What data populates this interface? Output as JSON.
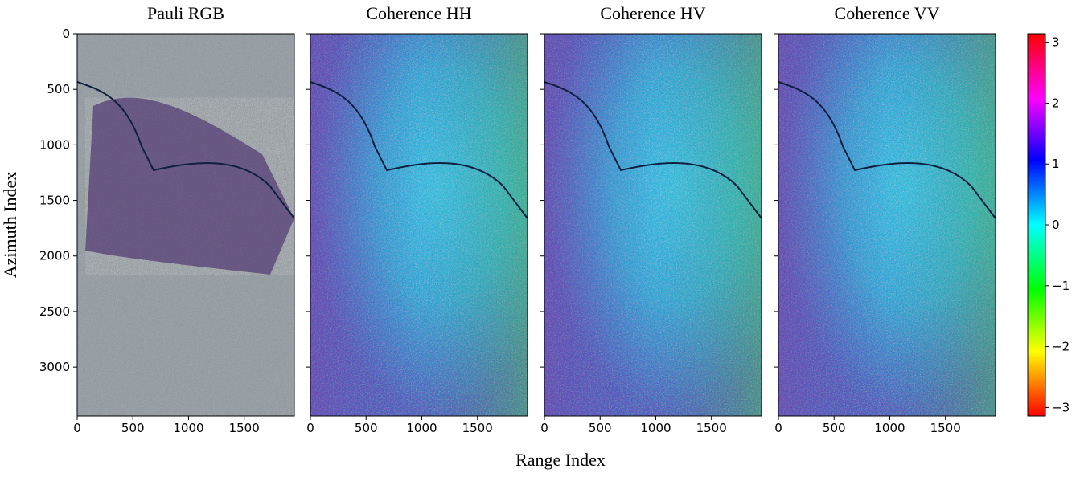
{
  "figure": {
    "xlabel": "Range Index",
    "ylabel": "Azimuth Index",
    "panels": [
      {
        "title": "Pauli RGB"
      },
      {
        "title": "Coherence HH"
      },
      {
        "title": "Coherence HV"
      },
      {
        "title": "Coherence VV"
      }
    ],
    "xlim": [
      0,
      1950
    ],
    "xticks": [
      0,
      500,
      1000,
      1500
    ],
    "ylim": [
      0,
      3440
    ],
    "yticks": [
      0,
      500,
      1000,
      1500,
      2000,
      2500,
      3000
    ],
    "colorbar": {
      "lim": [
        -3.14,
        3.14
      ],
      "ticks": [
        3,
        2,
        1,
        0,
        {
          "value": -1,
          "label": "−1"
        },
        {
          "value": -2,
          "label": "−2"
        },
        {
          "value": -3,
          "label": "−3"
        }
      ]
    }
  }
}
